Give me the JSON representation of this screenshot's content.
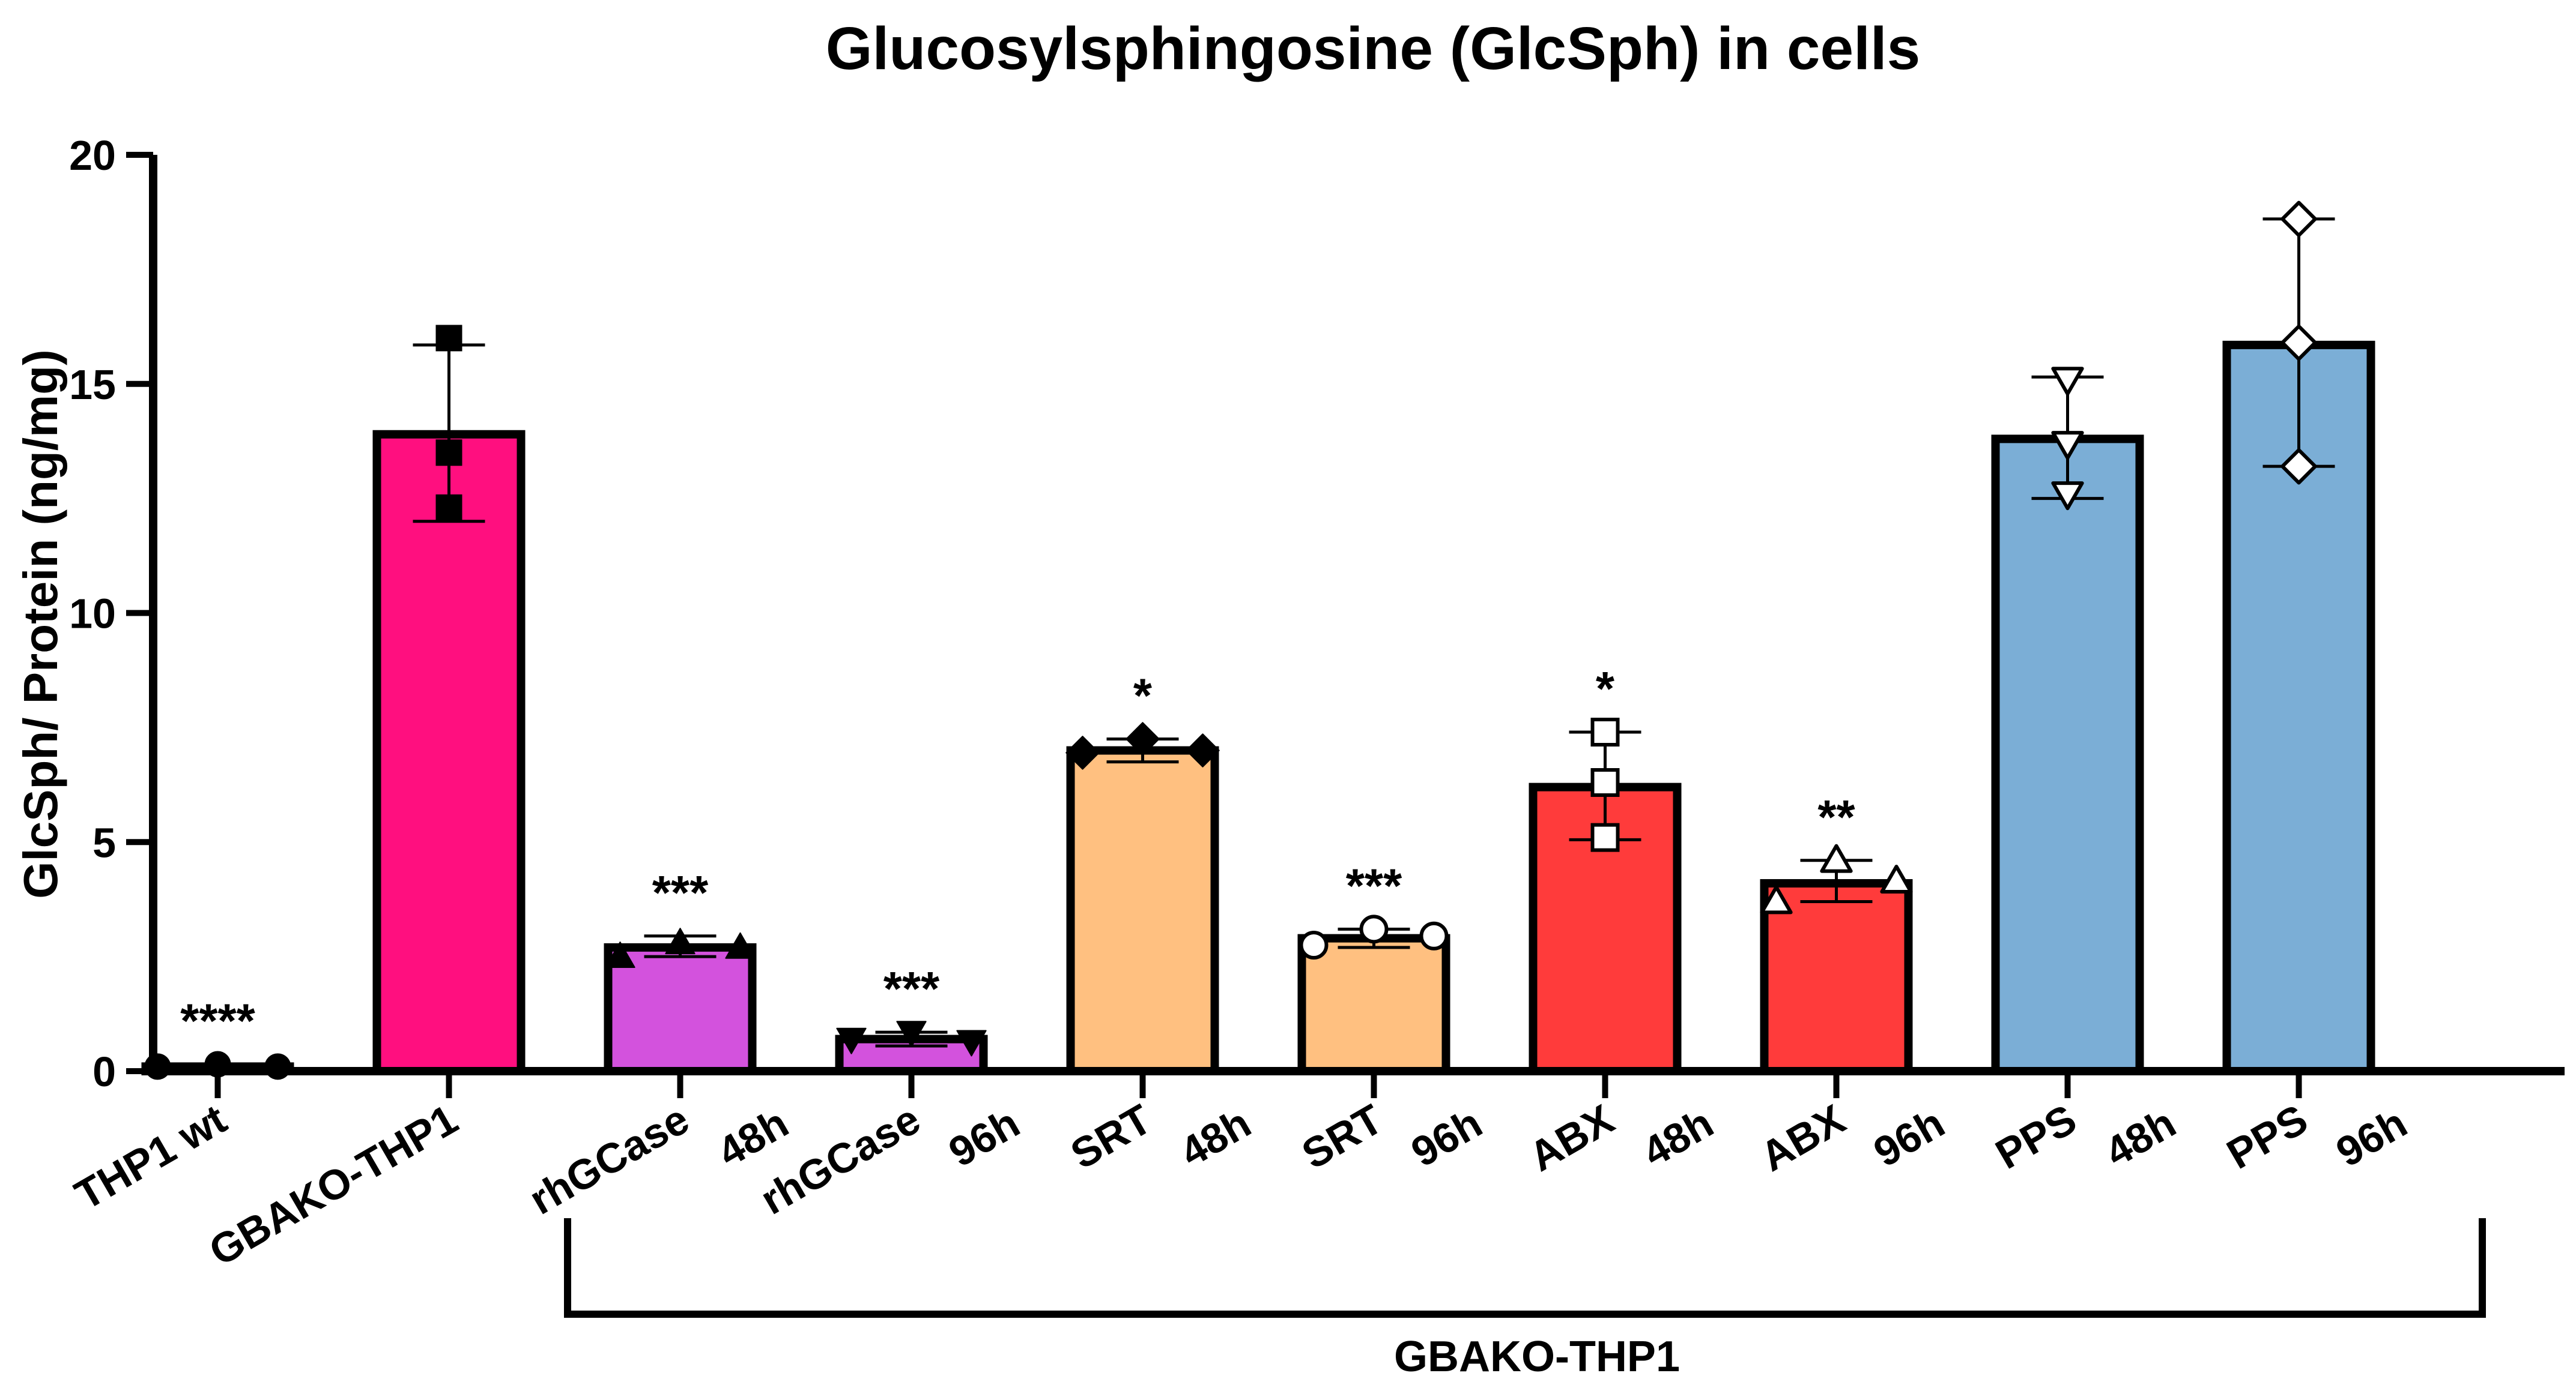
{
  "chart_data": {
    "type": "bar",
    "title": "Glucosylsphingosine (GlcSph) in cells",
    "xlabel": "",
    "ylabel": "GlcSph/ Protein (ng/mg)",
    "ylim": [
      0,
      20
    ],
    "yticks": [
      0,
      5,
      10,
      15,
      20
    ],
    "grid": false,
    "categories": [
      {
        "lines": [
          "THP1 wt"
        ]
      },
      {
        "lines": [
          "GBAKO-THP1"
        ]
      },
      {
        "lines": [
          "rhGCase",
          "48h"
        ]
      },
      {
        "lines": [
          "rhGCase",
          "96h"
        ]
      },
      {
        "lines": [
          "SRT",
          "48h"
        ]
      },
      {
        "lines": [
          "SRT",
          "96h"
        ]
      },
      {
        "lines": [
          "ABX",
          "48h"
        ]
      },
      {
        "lines": [
          "ABX",
          "96h"
        ]
      },
      {
        "lines": [
          "PPS",
          "48h"
        ]
      },
      {
        "lines": [
          "PPS",
          "96h"
        ]
      }
    ],
    "values": [
      0.1,
      13.9,
      2.7,
      0.7,
      7.0,
      2.9,
      6.2,
      4.1,
      13.8,
      15.85
    ],
    "error_low": [
      0.05,
      12.0,
      2.5,
      0.55,
      6.75,
      2.7,
      5.05,
      3.7,
      12.5,
      13.2
    ],
    "error_high": [
      0.15,
      15.85,
      2.95,
      0.85,
      7.25,
      3.1,
      7.4,
      4.6,
      15.15,
      18.6
    ],
    "points": [
      [
        0.1,
        0.15,
        0.1
      ],
      [
        16.0,
        13.5,
        12.3
      ],
      [
        2.5,
        2.8,
        2.7
      ],
      [
        0.7,
        0.85,
        0.65
      ],
      [
        6.95,
        7.25,
        7.0
      ],
      [
        2.75,
        3.1,
        2.95
      ],
      [
        7.4,
        6.3,
        5.1
      ],
      [
        3.7,
        4.6,
        4.15
      ],
      [
        15.1,
        13.7,
        12.6
      ],
      [
        18.6,
        15.9,
        13.2
      ]
    ],
    "markers": [
      "circle",
      "square",
      "triangle",
      "triangle-down",
      "diamond",
      "circle-open",
      "square-open",
      "triangle-open",
      "triangle-down-open",
      "diamond-open"
    ],
    "colors": [
      "#111111",
      "#FF0F7F",
      "#D352DD",
      "#D352DD",
      "#FFC080",
      "#FFC080",
      "#FF3B3B",
      "#FF3B3B",
      "#7BAED6",
      "#7BAED6"
    ],
    "significance": [
      "****",
      "",
      "***",
      "***",
      "*",
      "***",
      "*",
      "**",
      "",
      ""
    ],
    "group_label": "GBAKO-THP1"
  }
}
